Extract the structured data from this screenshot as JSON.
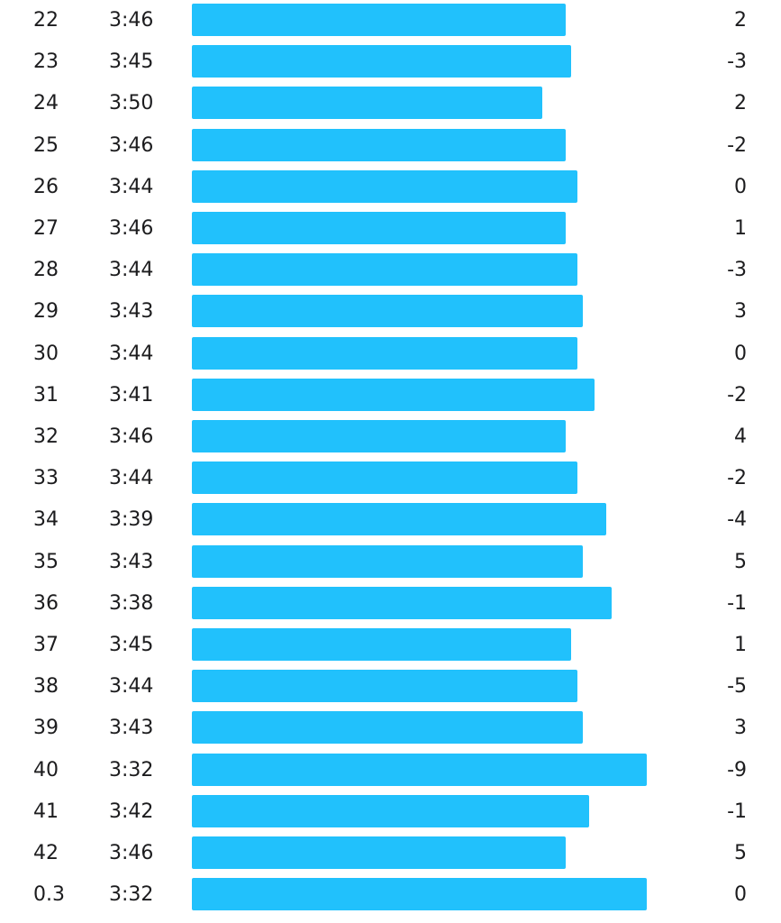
{
  "bar_color": "#21c1fc",
  "splits": [
    {
      "km": "22",
      "pace": "3:46",
      "elevation": "2",
      "pace_seconds": 226
    },
    {
      "km": "23",
      "pace": "3:45",
      "elevation": "-3",
      "pace_seconds": 225
    },
    {
      "km": "24",
      "pace": "3:50",
      "elevation": "2",
      "pace_seconds": 230
    },
    {
      "km": "25",
      "pace": "3:46",
      "elevation": "-2",
      "pace_seconds": 226
    },
    {
      "km": "26",
      "pace": "3:44",
      "elevation": "0",
      "pace_seconds": 224
    },
    {
      "km": "27",
      "pace": "3:46",
      "elevation": "1",
      "pace_seconds": 226
    },
    {
      "km": "28",
      "pace": "3:44",
      "elevation": "-3",
      "pace_seconds": 224
    },
    {
      "km": "29",
      "pace": "3:43",
      "elevation": "3",
      "pace_seconds": 223
    },
    {
      "km": "30",
      "pace": "3:44",
      "elevation": "0",
      "pace_seconds": 224
    },
    {
      "km": "31",
      "pace": "3:41",
      "elevation": "-2",
      "pace_seconds": 221
    },
    {
      "km": "32",
      "pace": "3:46",
      "elevation": "4",
      "pace_seconds": 226
    },
    {
      "km": "33",
      "pace": "3:44",
      "elevation": "-2",
      "pace_seconds": 224
    },
    {
      "km": "34",
      "pace": "3:39",
      "elevation": "-4",
      "pace_seconds": 219
    },
    {
      "km": "35",
      "pace": "3:43",
      "elevation": "5",
      "pace_seconds": 223
    },
    {
      "km": "36",
      "pace": "3:38",
      "elevation": "-1",
      "pace_seconds": 218
    },
    {
      "km": "37",
      "pace": "3:45",
      "elevation": "1",
      "pace_seconds": 225
    },
    {
      "km": "38",
      "pace": "3:44",
      "elevation": "-5",
      "pace_seconds": 224
    },
    {
      "km": "39",
      "pace": "3:43",
      "elevation": "3",
      "pace_seconds": 223
    },
    {
      "km": "40",
      "pace": "3:32",
      "elevation": "-9",
      "pace_seconds": 212
    },
    {
      "km": "41",
      "pace": "3:42",
      "elevation": "-1",
      "pace_seconds": 222
    },
    {
      "km": "42",
      "pace": "3:46",
      "elevation": "5",
      "pace_seconds": 226
    },
    {
      "km": "0.3",
      "pace": "3:32",
      "elevation": "0",
      "pace_seconds": 212
    }
  ]
}
